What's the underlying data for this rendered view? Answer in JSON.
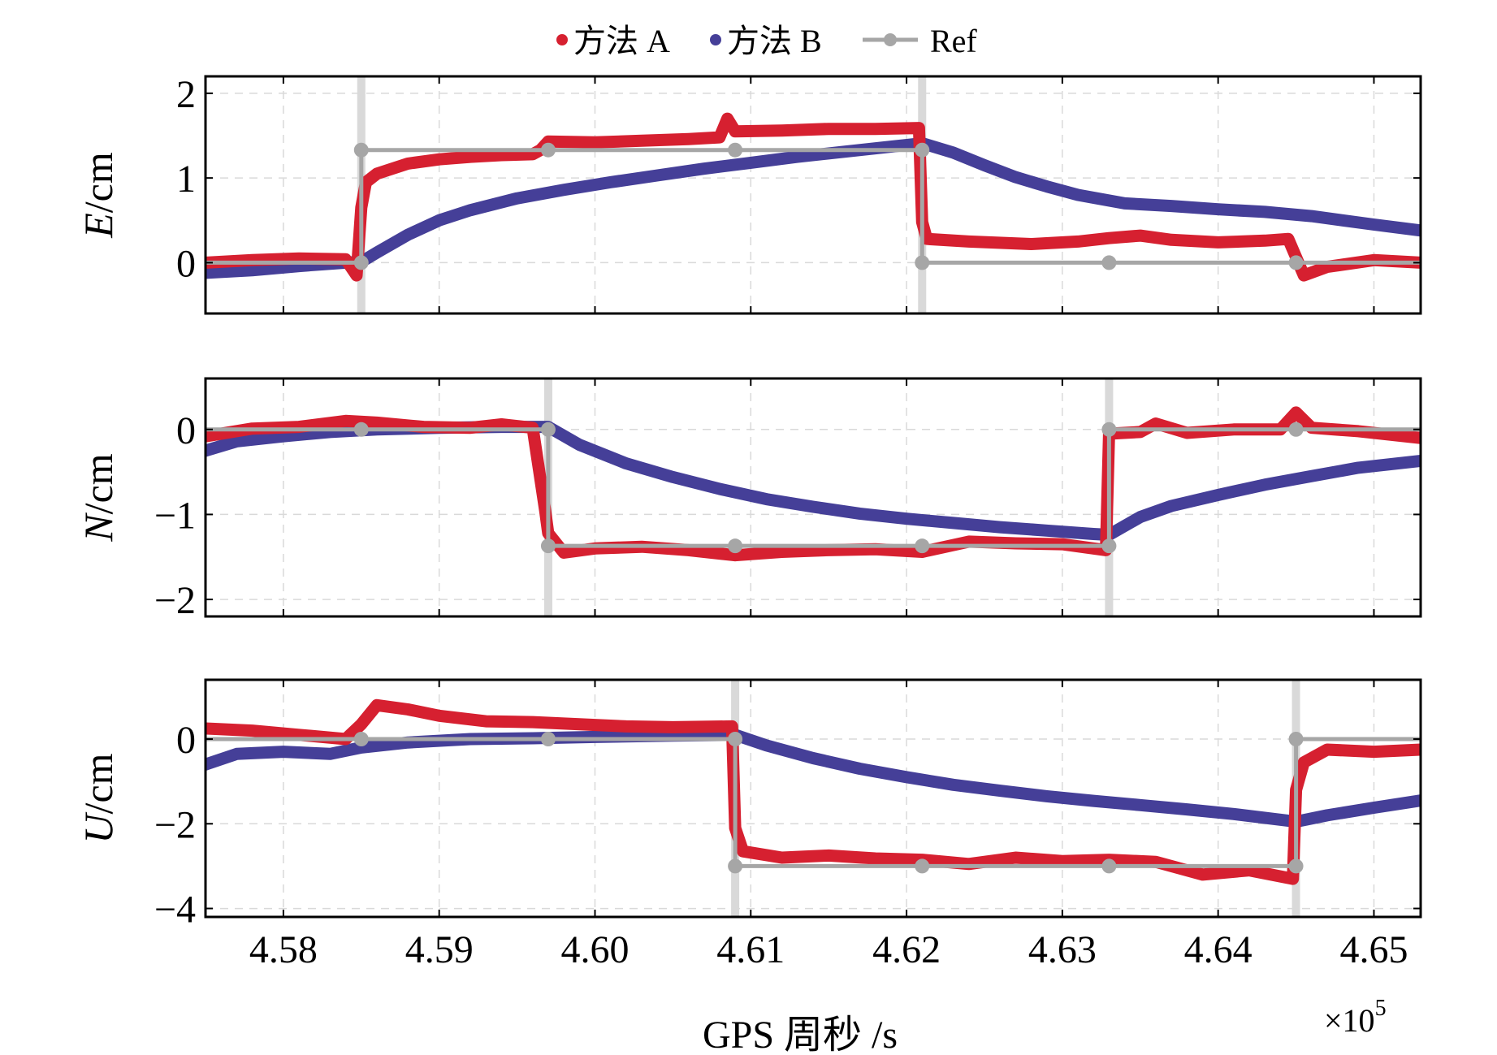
{
  "chart_data": {
    "type": "line",
    "legend": {
      "placement": "top-center",
      "entries": [
        {
          "name": "方法 A",
          "color": "#d62030",
          "marker": "dot"
        },
        {
          "name": "方法 B",
          "color": "#453f98",
          "marker": "dot"
        },
        {
          "name": "Ref",
          "color": "#a6a6a6",
          "marker": "line-dot"
        }
      ]
    },
    "xlabel": "GPS 周秒 /s",
    "xscale_label": "×10",
    "xscale_exponent": "5",
    "xlim": [
      4.575,
      4.653
    ],
    "xticks": [
      4.58,
      4.59,
      4.6,
      4.61,
      4.62,
      4.63,
      4.64,
      4.65
    ],
    "xtick_labels": [
      "4.58",
      "4.59",
      "4.60",
      "4.61",
      "4.62",
      "4.63",
      "4.64",
      "4.65"
    ],
    "grid": true,
    "colors": {
      "methodA": "#d62030",
      "methodB": "#453f98",
      "ref": "#a6a6a6",
      "switch": "#d9d9d9"
    },
    "panels": [
      {
        "name": "E",
        "ylabel_italic": "E",
        "ylabel_unit": "/cm",
        "ylim": [
          -0.6,
          2.2
        ],
        "yticks": [
          0,
          1,
          2
        ],
        "ytick_labels": [
          "0",
          "1",
          "2"
        ],
        "switches": [
          4.585,
          4.621
        ],
        "ref": [
          [
            4.575,
            0
          ],
          [
            4.585,
            0
          ],
          [
            4.585,
            1.33
          ],
          [
            4.621,
            1.33
          ],
          [
            4.621,
            0
          ],
          [
            4.653,
            0
          ]
        ],
        "ref_markers": [
          [
            4.585,
            0
          ],
          [
            4.585,
            1.33
          ],
          [
            4.597,
            1.33
          ],
          [
            4.609,
            1.33
          ],
          [
            4.621,
            1.33
          ],
          [
            4.621,
            0
          ],
          [
            4.633,
            0
          ],
          [
            4.645,
            0
          ]
        ],
        "methodA": [
          [
            4.575,
            0.0
          ],
          [
            4.578,
            0.03
          ],
          [
            4.581,
            0.05
          ],
          [
            4.584,
            0.04
          ],
          [
            4.5847,
            -0.15
          ],
          [
            4.585,
            0.65
          ],
          [
            4.5853,
            0.95
          ],
          [
            4.586,
            1.05
          ],
          [
            4.588,
            1.17
          ],
          [
            4.59,
            1.22
          ],
          [
            4.592,
            1.25
          ],
          [
            4.594,
            1.27
          ],
          [
            4.596,
            1.28
          ],
          [
            4.5965,
            1.33
          ],
          [
            4.597,
            1.43
          ],
          [
            4.6,
            1.42
          ],
          [
            4.603,
            1.44
          ],
          [
            4.606,
            1.46
          ],
          [
            4.608,
            1.48
          ],
          [
            4.6085,
            1.7
          ],
          [
            4.609,
            1.55
          ],
          [
            4.612,
            1.56
          ],
          [
            4.615,
            1.58
          ],
          [
            4.618,
            1.58
          ],
          [
            4.6208,
            1.59
          ],
          [
            4.621,
            0.48
          ],
          [
            4.6213,
            0.28
          ],
          [
            4.624,
            0.25
          ],
          [
            4.628,
            0.22
          ],
          [
            4.631,
            0.25
          ],
          [
            4.633,
            0.29
          ],
          [
            4.635,
            0.32
          ],
          [
            4.637,
            0.27
          ],
          [
            4.64,
            0.24
          ],
          [
            4.643,
            0.26
          ],
          [
            4.6445,
            0.28
          ],
          [
            4.6455,
            -0.15
          ],
          [
            4.647,
            -0.05
          ],
          [
            4.65,
            0.03
          ],
          [
            4.653,
            0.0
          ]
        ],
        "methodB": [
          [
            4.575,
            -0.12
          ],
          [
            4.578,
            -0.09
          ],
          [
            4.581,
            -0.04
          ],
          [
            4.584,
            0.0
          ],
          [
            4.585,
            0.01
          ],
          [
            4.586,
            0.12
          ],
          [
            4.588,
            0.33
          ],
          [
            4.59,
            0.5
          ],
          [
            4.592,
            0.62
          ],
          [
            4.595,
            0.76
          ],
          [
            4.598,
            0.86
          ],
          [
            4.601,
            0.95
          ],
          [
            4.604,
            1.03
          ],
          [
            4.607,
            1.11
          ],
          [
            4.61,
            1.18
          ],
          [
            4.613,
            1.25
          ],
          [
            4.616,
            1.31
          ],
          [
            4.619,
            1.37
          ],
          [
            4.621,
            1.41
          ],
          [
            4.623,
            1.3
          ],
          [
            4.625,
            1.15
          ],
          [
            4.627,
            1.01
          ],
          [
            4.629,
            0.9
          ],
          [
            4.631,
            0.8
          ],
          [
            4.634,
            0.7
          ],
          [
            4.637,
            0.67
          ],
          [
            4.64,
            0.63
          ],
          [
            4.643,
            0.6
          ],
          [
            4.646,
            0.55
          ],
          [
            4.65,
            0.45
          ],
          [
            4.653,
            0.38
          ]
        ]
      },
      {
        "name": "N",
        "ylabel_italic": "N",
        "ylabel_unit": "/cm",
        "ylim": [
          -2.2,
          0.6
        ],
        "yticks": [
          -2,
          -1,
          0
        ],
        "ytick_labels": [
          "−2",
          "−1",
          "0"
        ],
        "switches": [
          4.597,
          4.633
        ],
        "ref": [
          [
            4.575,
            0
          ],
          [
            4.597,
            0
          ],
          [
            4.597,
            -1.37
          ],
          [
            4.633,
            -1.37
          ],
          [
            4.633,
            0
          ],
          [
            4.653,
            0
          ]
        ],
        "ref_markers": [
          [
            4.585,
            0
          ],
          [
            4.597,
            0
          ],
          [
            4.597,
            -1.37
          ],
          [
            4.609,
            -1.37
          ],
          [
            4.621,
            -1.37
          ],
          [
            4.633,
            -1.37
          ],
          [
            4.633,
            0
          ],
          [
            4.645,
            0
          ]
        ],
        "methodA": [
          [
            4.575,
            -0.08
          ],
          [
            4.578,
            0.01
          ],
          [
            4.581,
            0.03
          ],
          [
            4.584,
            0.1
          ],
          [
            4.586,
            0.08
          ],
          [
            4.589,
            0.03
          ],
          [
            4.592,
            0.02
          ],
          [
            4.594,
            0.06
          ],
          [
            4.596,
            0.02
          ],
          [
            4.5968,
            -0.95
          ],
          [
            4.597,
            -1.22
          ],
          [
            4.598,
            -1.45
          ],
          [
            4.6,
            -1.4
          ],
          [
            4.603,
            -1.38
          ],
          [
            4.606,
            -1.42
          ],
          [
            4.609,
            -1.48
          ],
          [
            4.612,
            -1.44
          ],
          [
            4.615,
            -1.42
          ],
          [
            4.618,
            -1.41
          ],
          [
            4.621,
            -1.44
          ],
          [
            4.624,
            -1.32
          ],
          [
            4.627,
            -1.34
          ],
          [
            4.63,
            -1.35
          ],
          [
            4.6328,
            -1.42
          ],
          [
            4.633,
            -0.05
          ],
          [
            4.635,
            -0.03
          ],
          [
            4.636,
            0.07
          ],
          [
            4.638,
            -0.04
          ],
          [
            4.641,
            0.0
          ],
          [
            4.644,
            0.0
          ],
          [
            4.645,
            0.2
          ],
          [
            4.646,
            0.02
          ],
          [
            4.649,
            -0.02
          ],
          [
            4.653,
            -0.1
          ]
        ],
        "methodB": [
          [
            4.575,
            -0.25
          ],
          [
            4.577,
            -0.14
          ],
          [
            4.58,
            -0.08
          ],
          [
            4.583,
            -0.03
          ],
          [
            4.586,
            0.0
          ],
          [
            4.59,
            0.02
          ],
          [
            4.594,
            0.03
          ],
          [
            4.597,
            0.03
          ],
          [
            4.599,
            -0.18
          ],
          [
            4.602,
            -0.4
          ],
          [
            4.605,
            -0.56
          ],
          [
            4.608,
            -0.7
          ],
          [
            4.611,
            -0.82
          ],
          [
            4.614,
            -0.91
          ],
          [
            4.617,
            -0.99
          ],
          [
            4.62,
            -1.05
          ],
          [
            4.623,
            -1.1
          ],
          [
            4.626,
            -1.15
          ],
          [
            4.629,
            -1.19
          ],
          [
            4.632,
            -1.23
          ],
          [
            4.633,
            -1.24
          ],
          [
            4.635,
            -1.03
          ],
          [
            4.637,
            -0.9
          ],
          [
            4.64,
            -0.77
          ],
          [
            4.643,
            -0.65
          ],
          [
            4.646,
            -0.55
          ],
          [
            4.649,
            -0.45
          ],
          [
            4.653,
            -0.37
          ]
        ]
      },
      {
        "name": "U",
        "ylabel_italic": "U",
        "ylabel_unit": "/cm",
        "ylim": [
          -4.2,
          1.4
        ],
        "yticks": [
          -4,
          -2,
          0
        ],
        "ytick_labels": [
          "−4",
          "−2",
          "0"
        ],
        "switches": [
          4.609,
          4.645
        ],
        "ref": [
          [
            4.575,
            0
          ],
          [
            4.609,
            0
          ],
          [
            4.609,
            -3
          ],
          [
            4.645,
            -3
          ],
          [
            4.645,
            0
          ],
          [
            4.653,
            0
          ]
        ],
        "ref_markers": [
          [
            4.585,
            0
          ],
          [
            4.597,
            0
          ],
          [
            4.609,
            0
          ],
          [
            4.609,
            -3
          ],
          [
            4.621,
            -3
          ],
          [
            4.633,
            -3
          ],
          [
            4.645,
            -3
          ],
          [
            4.645,
            0
          ]
        ],
        "methodA": [
          [
            4.575,
            0.25
          ],
          [
            4.578,
            0.2
          ],
          [
            4.581,
            0.1
          ],
          [
            4.584,
            0.0
          ],
          [
            4.585,
            0.35
          ],
          [
            4.586,
            0.8
          ],
          [
            4.588,
            0.7
          ],
          [
            4.59,
            0.55
          ],
          [
            4.593,
            0.42
          ],
          [
            4.596,
            0.4
          ],
          [
            4.599,
            0.35
          ],
          [
            4.602,
            0.3
          ],
          [
            4.605,
            0.28
          ],
          [
            4.6088,
            0.3
          ],
          [
            4.609,
            -2.1
          ],
          [
            4.6095,
            -2.65
          ],
          [
            4.612,
            -2.8
          ],
          [
            4.615,
            -2.75
          ],
          [
            4.618,
            -2.82
          ],
          [
            4.621,
            -2.85
          ],
          [
            4.624,
            -2.95
          ],
          [
            4.627,
            -2.8
          ],
          [
            4.63,
            -2.88
          ],
          [
            4.633,
            -2.85
          ],
          [
            4.636,
            -2.9
          ],
          [
            4.639,
            -3.2
          ],
          [
            4.642,
            -3.1
          ],
          [
            4.6448,
            -3.3
          ],
          [
            4.645,
            -1.2
          ],
          [
            4.6455,
            -0.55
          ],
          [
            4.647,
            -0.25
          ],
          [
            4.65,
            -0.3
          ],
          [
            4.653,
            -0.25
          ]
        ],
        "methodB": [
          [
            4.575,
            -0.6
          ],
          [
            4.577,
            -0.35
          ],
          [
            4.58,
            -0.3
          ],
          [
            4.583,
            -0.35
          ],
          [
            4.585,
            -0.2
          ],
          [
            4.588,
            -0.08
          ],
          [
            4.592,
            0.0
          ],
          [
            4.596,
            0.02
          ],
          [
            4.6,
            0.05
          ],
          [
            4.605,
            0.08
          ],
          [
            4.609,
            0.1
          ],
          [
            4.611,
            -0.15
          ],
          [
            4.614,
            -0.45
          ],
          [
            4.617,
            -0.7
          ],
          [
            4.62,
            -0.9
          ],
          [
            4.623,
            -1.08
          ],
          [
            4.626,
            -1.22
          ],
          [
            4.629,
            -1.35
          ],
          [
            4.632,
            -1.46
          ],
          [
            4.635,
            -1.56
          ],
          [
            4.638,
            -1.66
          ],
          [
            4.641,
            -1.77
          ],
          [
            4.645,
            -1.95
          ],
          [
            4.647,
            -1.8
          ],
          [
            4.65,
            -1.62
          ],
          [
            4.653,
            -1.45
          ]
        ]
      }
    ]
  }
}
